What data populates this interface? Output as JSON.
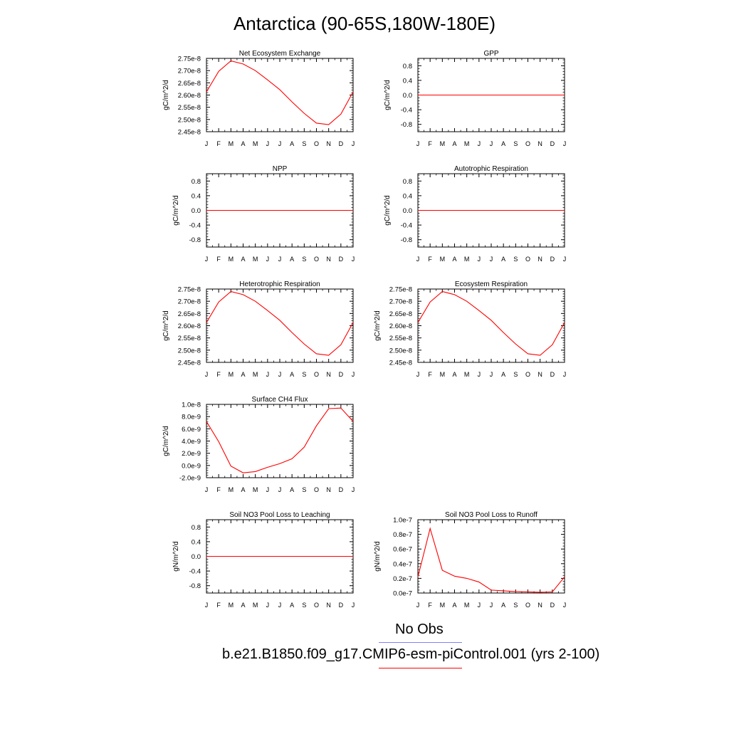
{
  "figure": {
    "title": "Antarctica (90-65S,180W-180E)"
  },
  "legend": {
    "obs_label": "No Obs",
    "obs_color": "#8080ff",
    "model_label": "b.e21.B1850.f09_g17.CMIP6-esm-piControl.001 (yrs 2-100)",
    "model_color": "#ff0000"
  },
  "series_color": "#ff0000",
  "chart_data": [
    {
      "type": "line",
      "title": "Net Ecosystem Exchange",
      "ylabel": "gC/m^2/d",
      "xticks": [
        "J",
        "F",
        "M",
        "A",
        "M",
        "J",
        "J",
        "A",
        "S",
        "O",
        "N",
        "D",
        "J"
      ],
      "ylim": [
        2.45e-08,
        2.75e-08
      ],
      "yticks": [
        2.45e-08,
        2.5e-08,
        2.55e-08,
        2.6e-08,
        2.65e-08,
        2.7e-08,
        2.75e-08
      ],
      "ytick_labels": [
        "2.45e-8",
        "2.50e-8",
        "2.55e-8",
        "2.60e-8",
        "2.65e-8",
        "2.70e-8",
        "2.75e-8"
      ],
      "values": [
        2.613e-08,
        2.697e-08,
        2.74e-08,
        2.727e-08,
        2.7e-08,
        2.662e-08,
        2.622e-08,
        2.572e-08,
        2.525e-08,
        2.485e-08,
        2.479e-08,
        2.522e-08,
        2.613e-08
      ]
    },
    {
      "type": "line",
      "title": "GPP",
      "ylabel": "gC/m^2/d",
      "xticks": [
        "J",
        "F",
        "M",
        "A",
        "M",
        "J",
        "J",
        "A",
        "S",
        "O",
        "N",
        "D",
        "J"
      ],
      "ylim": [
        -1,
        1
      ],
      "yticks": [
        -0.8,
        -0.4,
        0.0,
        0.4,
        0.8
      ],
      "ytick_labels": [
        "-0.8",
        "-0.4",
        "0.0",
        "0.4",
        "0.8"
      ],
      "values": [
        0,
        0,
        0,
        0,
        0,
        0,
        0,
        0,
        0,
        0,
        0,
        0,
        0
      ]
    },
    {
      "type": "line",
      "title": "NPP",
      "ylabel": "gC/m^2/d",
      "xticks": [
        "J",
        "F",
        "M",
        "A",
        "M",
        "J",
        "J",
        "A",
        "S",
        "O",
        "N",
        "D",
        "J"
      ],
      "ylim": [
        -1,
        1
      ],
      "yticks": [
        -0.8,
        -0.4,
        0.0,
        0.4,
        0.8
      ],
      "ytick_labels": [
        "-0.8",
        "-0.4",
        "0.0",
        "0.4",
        "0.8"
      ],
      "values": [
        0,
        0,
        0,
        0,
        0,
        0,
        0,
        0,
        0,
        0,
        0,
        0,
        0
      ]
    },
    {
      "type": "line",
      "title": "Autotrophic Respiration",
      "ylabel": "gC/m^2/d",
      "xticks": [
        "J",
        "F",
        "M",
        "A",
        "M",
        "J",
        "J",
        "A",
        "S",
        "O",
        "N",
        "D",
        "J"
      ],
      "ylim": [
        -1,
        1
      ],
      "yticks": [
        -0.8,
        -0.4,
        0.0,
        0.4,
        0.8
      ],
      "ytick_labels": [
        "-0.8",
        "-0.4",
        "0.0",
        "0.4",
        "0.8"
      ],
      "values": [
        0,
        0,
        0,
        0,
        0,
        0,
        0,
        0,
        0,
        0,
        0,
        0,
        0
      ]
    },
    {
      "type": "line",
      "title": "Heterotrophic Respiration",
      "ylabel": "gC/m^2/d",
      "xticks": [
        "J",
        "F",
        "M",
        "A",
        "M",
        "J",
        "J",
        "A",
        "S",
        "O",
        "N",
        "D",
        "J"
      ],
      "ylim": [
        2.45e-08,
        2.75e-08
      ],
      "yticks": [
        2.45e-08,
        2.5e-08,
        2.55e-08,
        2.6e-08,
        2.65e-08,
        2.7e-08,
        2.75e-08
      ],
      "ytick_labels": [
        "2.45e-8",
        "2.50e-8",
        "2.55e-8",
        "2.60e-8",
        "2.65e-8",
        "2.70e-8",
        "2.75e-8"
      ],
      "values": [
        2.613e-08,
        2.697e-08,
        2.74e-08,
        2.727e-08,
        2.7e-08,
        2.662e-08,
        2.622e-08,
        2.572e-08,
        2.525e-08,
        2.485e-08,
        2.479e-08,
        2.522e-08,
        2.613e-08
      ]
    },
    {
      "type": "line",
      "title": "Ecosystem Respiration",
      "ylabel": "gC/m^2/d",
      "xticks": [
        "J",
        "F",
        "M",
        "A",
        "M",
        "J",
        "J",
        "A",
        "S",
        "O",
        "N",
        "D",
        "J"
      ],
      "ylim": [
        2.45e-08,
        2.75e-08
      ],
      "yticks": [
        2.45e-08,
        2.5e-08,
        2.55e-08,
        2.6e-08,
        2.65e-08,
        2.7e-08,
        2.75e-08
      ],
      "ytick_labels": [
        "2.45e-8",
        "2.50e-8",
        "2.55e-8",
        "2.60e-8",
        "2.65e-8",
        "2.70e-8",
        "2.75e-8"
      ],
      "values": [
        2.613e-08,
        2.697e-08,
        2.74e-08,
        2.727e-08,
        2.7e-08,
        2.662e-08,
        2.622e-08,
        2.572e-08,
        2.525e-08,
        2.485e-08,
        2.479e-08,
        2.522e-08,
        2.613e-08
      ]
    },
    {
      "type": "line",
      "title": "Surface CH4 Flux",
      "ylabel": "gC/m^2/d",
      "xticks": [
        "J",
        "F",
        "M",
        "A",
        "M",
        "J",
        "J",
        "A",
        "S",
        "O",
        "N",
        "D",
        "J"
      ],
      "ylim": [
        -2e-09,
        1e-08
      ],
      "yticks": [
        -2e-09,
        0,
        2e-09,
        4e-09,
        6e-09,
        8e-09,
        1e-08
      ],
      "ytick_labels": [
        "-2.0e-9",
        "0.0e-9",
        "2.0e-9",
        "4.0e-9",
        "6.0e-9",
        "8.0e-9",
        "1.0e-8"
      ],
      "values": [
        7.2e-09,
        3.9e-09,
        -1e-10,
        -1.2e-09,
        -1e-09,
        -3e-10,
        3e-10,
        1.1e-09,
        3e-09,
        6.5e-09,
        9.3e-09,
        9.4e-09,
        7.2e-09
      ]
    },
    {
      "type": "line",
      "title": "Soil NO3 Pool Loss to Leaching",
      "ylabel": "gN/m^2/d",
      "xticks": [
        "J",
        "F",
        "M",
        "A",
        "M",
        "J",
        "J",
        "A",
        "S",
        "O",
        "N",
        "D",
        "J"
      ],
      "ylim": [
        -1,
        1
      ],
      "yticks": [
        -0.8,
        -0.4,
        0.0,
        0.4,
        0.8
      ],
      "ytick_labels": [
        "-0.8",
        "-0.4",
        "0.0",
        "0.4",
        "0.8"
      ],
      "values": [
        0,
        0,
        0,
        0,
        0,
        0,
        0,
        0,
        0,
        0,
        0,
        0,
        0
      ]
    },
    {
      "type": "line",
      "title": "Soil NO3 Pool Loss to Runoff",
      "ylabel": "gN/m^2/d",
      "xticks": [
        "J",
        "F",
        "M",
        "A",
        "M",
        "J",
        "J",
        "A",
        "S",
        "O",
        "N",
        "D",
        "J"
      ],
      "ylim": [
        0,
        1e-07
      ],
      "yticks": [
        0,
        2e-08,
        4e-08,
        6e-08,
        8e-08,
        1e-07
      ],
      "ytick_labels": [
        "0.0e-7",
        "0.2e-7",
        "0.4e-7",
        "0.6e-7",
        "0.8e-7",
        "1.0e-7"
      ],
      "values": [
        2.2e-08,
        8.8e-08,
        3.1e-08,
        2.3e-08,
        2e-08,
        1.5e-08,
        4e-09,
        3e-09,
        2e-09,
        1.5e-09,
        1e-09,
        1.5e-09,
        2.2e-08
      ]
    }
  ]
}
